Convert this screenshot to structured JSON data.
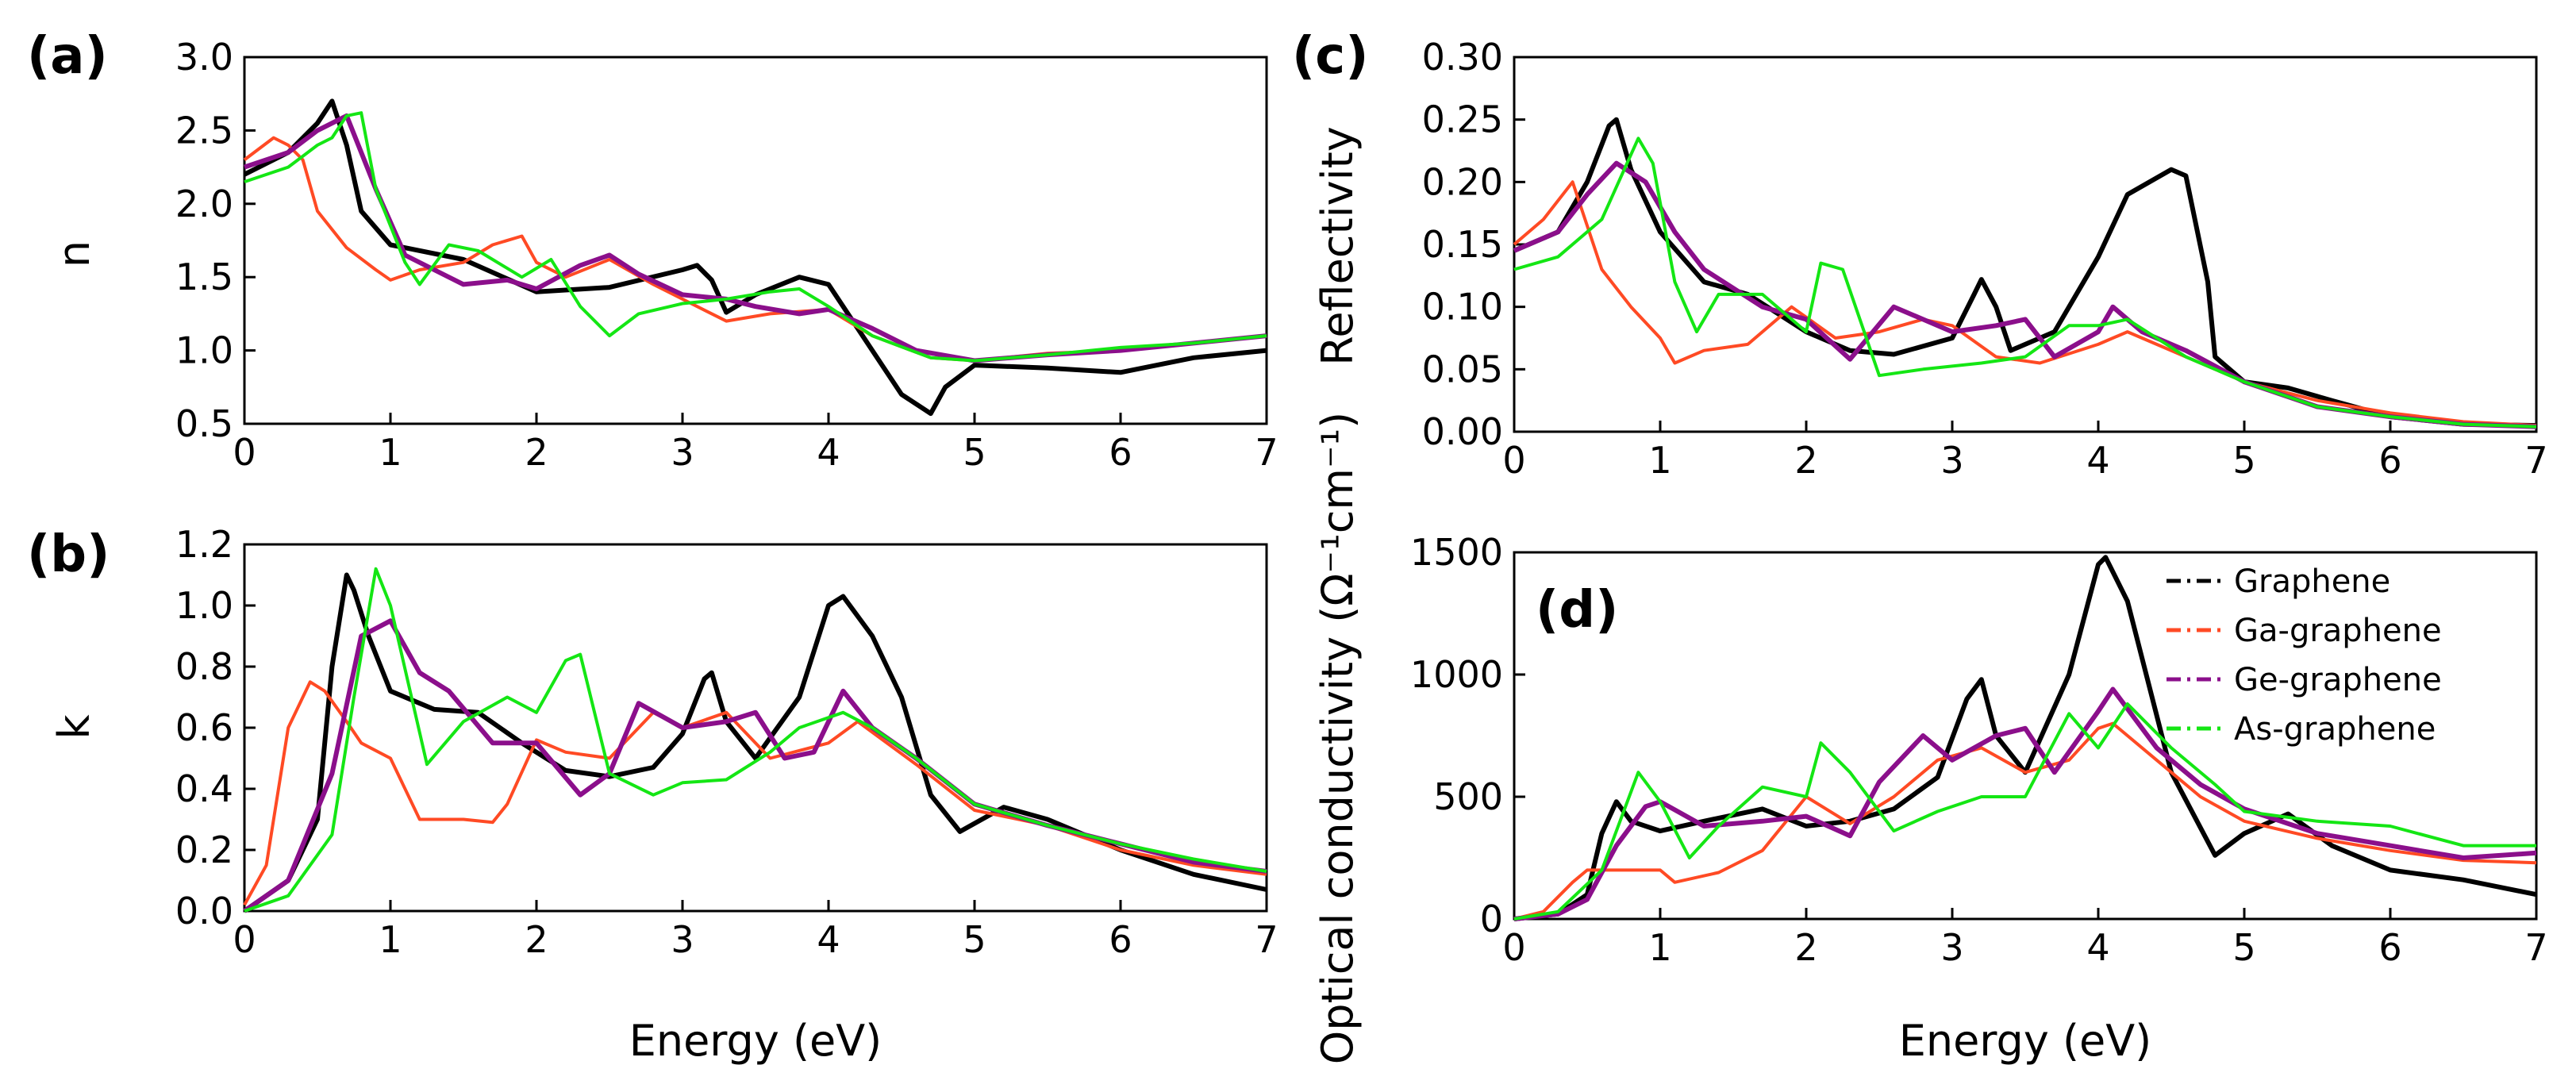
{
  "colors": {
    "Graphene": "#000000",
    "Ga-graphene": "#ff4a24",
    "Ge-graphene": "#8b0f8b",
    "As-graphene": "#14e614"
  },
  "legend": [
    "Graphene",
    "Ga-graphene",
    "Ge-graphene",
    "As-graphene"
  ],
  "chart_data": [
    {
      "panel": "(a)",
      "type": "line",
      "xlabel": "Energy (eV)",
      "ylabel": "n",
      "xlim": [
        0,
        7
      ],
      "ylim": [
        0.5,
        3.0
      ],
      "xticks": [
        "0",
        "1",
        "2",
        "3",
        "4",
        "5",
        "6",
        "7"
      ],
      "yticks": [
        "0.5",
        "1.0",
        "1.5",
        "2.0",
        "2.5",
        "3.0"
      ],
      "series": [
        {
          "name": "Graphene",
          "x": [
            0,
            0.3,
            0.5,
            0.6,
            0.7,
            0.8,
            1,
            1.5,
            2,
            2.5,
            3,
            3.1,
            3.2,
            3.3,
            3.5,
            3.8,
            4,
            4.3,
            4.5,
            4.7,
            4.8,
            5,
            5.5,
            6,
            6.5,
            7
          ],
          "y": [
            2.2,
            2.35,
            2.55,
            2.7,
            2.4,
            1.95,
            1.72,
            1.62,
            1.4,
            1.43,
            1.55,
            1.58,
            1.48,
            1.26,
            1.38,
            1.5,
            1.45,
            1.0,
            0.7,
            0.57,
            0.75,
            0.9,
            0.88,
            0.85,
            0.95,
            1.0
          ]
        },
        {
          "name": "Ga-graphene",
          "x": [
            0,
            0.2,
            0.3,
            0.4,
            0.5,
            0.7,
            0.9,
            1,
            1.2,
            1.5,
            1.7,
            1.9,
            2,
            2.2,
            2.5,
            2.8,
            3,
            3.3,
            3.6,
            4,
            4.3,
            4.7,
            5,
            5.5,
            6,
            6.5,
            7
          ],
          "y": [
            2.3,
            2.45,
            2.4,
            2.3,
            1.95,
            1.7,
            1.55,
            1.48,
            1.55,
            1.6,
            1.72,
            1.78,
            1.6,
            1.5,
            1.62,
            1.45,
            1.35,
            1.2,
            1.25,
            1.28,
            1.1,
            0.95,
            0.93,
            0.98,
            1.0,
            1.05,
            1.1
          ]
        },
        {
          "name": "Ge-graphene",
          "x": [
            0,
            0.3,
            0.5,
            0.7,
            0.9,
            1.1,
            1.3,
            1.5,
            1.8,
            2,
            2.3,
            2.5,
            2.7,
            3,
            3.3,
            3.5,
            3.8,
            4,
            4.3,
            4.6,
            5,
            5.5,
            6,
            6.5,
            7
          ],
          "y": [
            2.25,
            2.35,
            2.5,
            2.6,
            2.1,
            1.65,
            1.55,
            1.45,
            1.48,
            1.42,
            1.58,
            1.65,
            1.52,
            1.38,
            1.35,
            1.3,
            1.25,
            1.28,
            1.15,
            1.0,
            0.93,
            0.97,
            1.0,
            1.05,
            1.1
          ]
        },
        {
          "name": "As-graphene",
          "x": [
            0,
            0.3,
            0.5,
            0.6,
            0.7,
            0.8,
            0.9,
            1.1,
            1.2,
            1.4,
            1.6,
            1.9,
            2.1,
            2.3,
            2.5,
            2.7,
            3,
            3.3,
            3.6,
            3.8,
            4,
            4.3,
            4.7,
            5,
            5.5,
            6,
            6.5,
            7
          ],
          "y": [
            2.15,
            2.25,
            2.4,
            2.45,
            2.6,
            2.62,
            2.1,
            1.6,
            1.45,
            1.72,
            1.68,
            1.5,
            1.62,
            1.3,
            1.1,
            1.25,
            1.32,
            1.35,
            1.4,
            1.42,
            1.3,
            1.1,
            0.95,
            0.93,
            0.97,
            1.02,
            1.05,
            1.1
          ]
        }
      ]
    },
    {
      "panel": "(b)",
      "type": "line",
      "xlabel": "Energy (eV)",
      "ylabel": "k",
      "xlim": [
        0,
        7
      ],
      "ylim": [
        0.0,
        1.2
      ],
      "xticks": [
        "0",
        "1",
        "2",
        "3",
        "4",
        "5",
        "6",
        "7"
      ],
      "yticks": [
        "0.0",
        "0.2",
        "0.4",
        "0.6",
        "0.8",
        "1.0",
        "1.2"
      ],
      "series": [
        {
          "name": "Graphene",
          "x": [
            0,
            0.3,
            0.5,
            0.6,
            0.7,
            0.75,
            0.85,
            1,
            1.3,
            1.6,
            1.9,
            2.2,
            2.5,
            2.8,
            3,
            3.15,
            3.2,
            3.3,
            3.5,
            3.8,
            4,
            4.1,
            4.3,
            4.5,
            4.7,
            4.9,
            5.2,
            5.5,
            6,
            6.5,
            7
          ],
          "y": [
            0,
            0.1,
            0.3,
            0.8,
            1.1,
            1.05,
            0.9,
            0.72,
            0.66,
            0.65,
            0.55,
            0.46,
            0.44,
            0.47,
            0.58,
            0.76,
            0.78,
            0.62,
            0.5,
            0.7,
            1.0,
            1.03,
            0.9,
            0.7,
            0.38,
            0.26,
            0.34,
            0.3,
            0.2,
            0.12,
            0.07
          ]
        },
        {
          "name": "Ga-graphene",
          "x": [
            0,
            0.15,
            0.3,
            0.45,
            0.55,
            0.7,
            0.8,
            1,
            1.2,
            1.5,
            1.7,
            1.8,
            2,
            2.2,
            2.5,
            2.8,
            3,
            3.3,
            3.6,
            4,
            4.2,
            4.6,
            5,
            5.5,
            6,
            6.5,
            7
          ],
          "y": [
            0.02,
            0.15,
            0.6,
            0.75,
            0.72,
            0.62,
            0.55,
            0.5,
            0.3,
            0.3,
            0.29,
            0.35,
            0.56,
            0.52,
            0.5,
            0.65,
            0.6,
            0.65,
            0.5,
            0.55,
            0.62,
            0.48,
            0.33,
            0.28,
            0.2,
            0.15,
            0.12
          ]
        },
        {
          "name": "Ge-graphene",
          "x": [
            0,
            0.3,
            0.6,
            0.8,
            1,
            1.2,
            1.4,
            1.7,
            2,
            2.3,
            2.5,
            2.7,
            3,
            3.3,
            3.5,
            3.7,
            3.9,
            4.1,
            4.3,
            4.6,
            5,
            5.5,
            6,
            6.5,
            7
          ],
          "y": [
            0,
            0.1,
            0.45,
            0.9,
            0.95,
            0.78,
            0.72,
            0.55,
            0.55,
            0.38,
            0.45,
            0.68,
            0.6,
            0.62,
            0.65,
            0.5,
            0.52,
            0.72,
            0.6,
            0.5,
            0.35,
            0.28,
            0.22,
            0.16,
            0.13
          ]
        },
        {
          "name": "As-graphene",
          "x": [
            0,
            0.3,
            0.6,
            0.75,
            0.9,
            1,
            1.25,
            1.5,
            1.8,
            2,
            2.2,
            2.3,
            2.5,
            2.8,
            3,
            3.3,
            3.6,
            3.8,
            4.1,
            4.3,
            4.6,
            5,
            5.5,
            6,
            6.5,
            7
          ],
          "y": [
            0,
            0.05,
            0.25,
            0.7,
            1.12,
            1.0,
            0.48,
            0.62,
            0.7,
            0.65,
            0.82,
            0.84,
            0.45,
            0.38,
            0.42,
            0.43,
            0.52,
            0.6,
            0.65,
            0.6,
            0.5,
            0.35,
            0.28,
            0.22,
            0.17,
            0.13
          ]
        }
      ]
    },
    {
      "panel": "(c)",
      "type": "line",
      "xlabel": "",
      "ylabel": "Reflectivity",
      "xlim": [
        0,
        7
      ],
      "ylim": [
        0.0,
        0.3
      ],
      "xticks": [
        "0",
        "1",
        "2",
        "3",
        "4",
        "5",
        "6",
        "7"
      ],
      "yticks": [
        "0.00",
        "0.05",
        "0.10",
        "0.15",
        "0.20",
        "0.25",
        "0.30"
      ],
      "series": [
        {
          "name": "Graphene",
          "x": [
            0,
            0.3,
            0.5,
            0.65,
            0.7,
            0.8,
            1,
            1.3,
            1.6,
            2,
            2.3,
            2.6,
            3,
            3.15,
            3.2,
            3.3,
            3.4,
            3.7,
            4,
            4.2,
            4.5,
            4.6,
            4.75,
            4.8,
            5,
            5.3,
            5.6,
            6,
            6.5,
            7
          ],
          "y": [
            0.145,
            0.16,
            0.2,
            0.245,
            0.25,
            0.21,
            0.16,
            0.12,
            0.11,
            0.08,
            0.065,
            0.062,
            0.075,
            0.11,
            0.122,
            0.1,
            0.065,
            0.08,
            0.14,
            0.19,
            0.21,
            0.205,
            0.12,
            0.06,
            0.04,
            0.035,
            0.025,
            0.012,
            0.006,
            0.005
          ]
        },
        {
          "name": "Ga-graphene",
          "x": [
            0,
            0.2,
            0.4,
            0.6,
            0.8,
            1,
            1.1,
            1.3,
            1.6,
            1.9,
            2.2,
            2.5,
            2.8,
            3,
            3.3,
            3.6,
            4,
            4.2,
            4.6,
            5,
            5.5,
            6,
            6.5,
            7
          ],
          "y": [
            0.15,
            0.17,
            0.2,
            0.13,
            0.1,
            0.075,
            0.055,
            0.065,
            0.07,
            0.1,
            0.075,
            0.08,
            0.09,
            0.085,
            0.06,
            0.055,
            0.07,
            0.08,
            0.06,
            0.04,
            0.025,
            0.015,
            0.008,
            0.005
          ]
        },
        {
          "name": "Ge-graphene",
          "x": [
            0,
            0.3,
            0.5,
            0.7,
            0.9,
            1.1,
            1.3,
            1.7,
            2,
            2.3,
            2.6,
            2.8,
            3,
            3.3,
            3.5,
            3.7,
            4,
            4.1,
            4.3,
            4.6,
            5,
            5.5,
            6,
            6.5,
            7
          ],
          "y": [
            0.145,
            0.16,
            0.19,
            0.215,
            0.2,
            0.16,
            0.13,
            0.1,
            0.09,
            0.058,
            0.1,
            0.09,
            0.08,
            0.085,
            0.09,
            0.06,
            0.08,
            0.1,
            0.08,
            0.065,
            0.04,
            0.02,
            0.012,
            0.006,
            0.004
          ]
        },
        {
          "name": "As-graphene",
          "x": [
            0,
            0.3,
            0.6,
            0.85,
            0.95,
            1.1,
            1.25,
            1.4,
            1.7,
            2,
            2.1,
            2.25,
            2.5,
            2.8,
            3.2,
            3.5,
            3.8,
            4,
            4.2,
            4.6,
            5,
            5.5,
            6,
            6.5,
            7
          ],
          "y": [
            0.13,
            0.14,
            0.17,
            0.235,
            0.215,
            0.12,
            0.08,
            0.11,
            0.11,
            0.08,
            0.135,
            0.13,
            0.045,
            0.05,
            0.055,
            0.06,
            0.085,
            0.085,
            0.09,
            0.06,
            0.04,
            0.02,
            0.012,
            0.006,
            0.004
          ]
        }
      ]
    },
    {
      "panel": "(d)",
      "type": "line",
      "xlabel": "Energy (eV)",
      "ylabel": "Optical conductivity",
      "xlim": [
        0,
        7
      ],
      "ylim": [
        0,
        1500
      ],
      "xticks": [
        "0",
        "1",
        "2",
        "3",
        "4",
        "5",
        "6",
        "7"
      ],
      "yticks": [
        "0",
        "500",
        "1000",
        "1500"
      ],
      "series": [
        {
          "name": "Graphene",
          "x": [
            0,
            0.3,
            0.5,
            0.6,
            0.7,
            0.8,
            1,
            1.3,
            1.7,
            2,
            2.3,
            2.6,
            2.9,
            3.1,
            3.2,
            3.3,
            3.5,
            3.8,
            4,
            4.05,
            4.2,
            4.5,
            4.8,
            5,
            5.3,
            5.6,
            6,
            6.5,
            7
          ],
          "y": [
            0,
            20,
            100,
            350,
            480,
            400,
            360,
            400,
            450,
            380,
            400,
            450,
            580,
            900,
            980,
            750,
            600,
            1000,
            1450,
            1480,
            1300,
            600,
            260,
            350,
            430,
            300,
            200,
            160,
            100
          ]
        },
        {
          "name": "Ga-graphene",
          "x": [
            0,
            0.2,
            0.4,
            0.5,
            0.8,
            1,
            1.1,
            1.4,
            1.7,
            2,
            2.3,
            2.6,
            2.9,
            3.2,
            3.5,
            3.8,
            4,
            4.1,
            4.4,
            4.7,
            5,
            5.5,
            6,
            6.5,
            7
          ],
          "y": [
            0,
            30,
            150,
            200,
            200,
            200,
            150,
            190,
            280,
            500,
            390,
            500,
            650,
            700,
            600,
            650,
            780,
            800,
            650,
            500,
            400,
            330,
            280,
            240,
            230
          ]
        },
        {
          "name": "Ge-graphene",
          "x": [
            0,
            0.3,
            0.5,
            0.7,
            0.9,
            1,
            1.3,
            1.7,
            2,
            2.3,
            2.5,
            2.8,
            3,
            3.3,
            3.5,
            3.7,
            4,
            4.1,
            4.4,
            4.7,
            5,
            5.5,
            6,
            6.5,
            7
          ],
          "y": [
            0,
            20,
            80,
            300,
            460,
            480,
            380,
            400,
            420,
            340,
            560,
            750,
            650,
            750,
            780,
            600,
            850,
            940,
            700,
            550,
            450,
            350,
            300,
            250,
            270
          ]
        },
        {
          "name": "As-graphene",
          "x": [
            0,
            0.3,
            0.6,
            0.85,
            1,
            1.2,
            1.4,
            1.7,
            2,
            2.1,
            2.3,
            2.6,
            2.9,
            3.2,
            3.5,
            3.8,
            4,
            4.2,
            4.5,
            4.8,
            5,
            5.5,
            6,
            6.5,
            7
          ],
          "y": [
            0,
            30,
            200,
            600,
            480,
            250,
            380,
            540,
            500,
            720,
            600,
            360,
            440,
            500,
            500,
            840,
            700,
            880,
            700,
            550,
            440,
            400,
            380,
            300,
            300
          ]
        }
      ]
    }
  ],
  "panel_labels": {
    "a": "(a)",
    "b": "(b)",
    "c": "(c)",
    "d": "(d)"
  },
  "axis_text": {
    "energy": "Energy (eV)",
    "n": "n",
    "k": "k",
    "reflectivity": "Reflectivity",
    "conductivity": "Optical conductivity (Ω⁻¹cm⁻¹)"
  }
}
